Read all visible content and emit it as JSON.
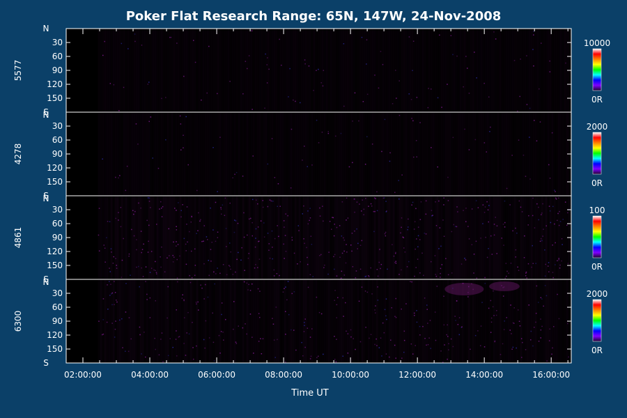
{
  "chart_data": {
    "type": "heatmap",
    "title": "Poker Flat Research Range: 65N, 147W, 24-Nov-2008",
    "xlabel": "Time UT",
    "x_ticks": [
      "02:00:00",
      "04:00:00",
      "06:00:00",
      "08:00:00",
      "10:00:00",
      "12:00:00",
      "14:00:00",
      "16:00:00"
    ],
    "x_tick_hours": [
      2,
      4,
      6,
      8,
      10,
      12,
      14,
      16
    ],
    "xlim_hours": [
      1.5,
      16.6
    ],
    "data_start_hours": 2.45,
    "y_ticks": [
      "N",
      "30",
      "60",
      "90",
      "120",
      "150",
      "S"
    ],
    "y_tick_values": [
      0,
      30,
      60,
      90,
      120,
      150,
      180
    ],
    "ylim": [
      0,
      180
    ],
    "panels": [
      {
        "name": "5577",
        "scale_max": "10000",
        "scale_min": "0R",
        "activity": 0.08
      },
      {
        "name": "4278",
        "scale_max": "2000",
        "scale_min": "0R",
        "activity": 0.06
      },
      {
        "name": "4861",
        "scale_max": "100",
        "scale_min": "0R",
        "activity": 0.55
      },
      {
        "name": "6300",
        "scale_max": "2000",
        "scale_min": "0R",
        "activity": 0.35
      }
    ],
    "colormap": [
      "#ffffff",
      "#ff0000",
      "#ff8000",
      "#ffff00",
      "#00ff00",
      "#00ffff",
      "#0000ff",
      "#8000ff",
      "#200030"
    ],
    "background_color": "#0b4068",
    "grid": false
  }
}
